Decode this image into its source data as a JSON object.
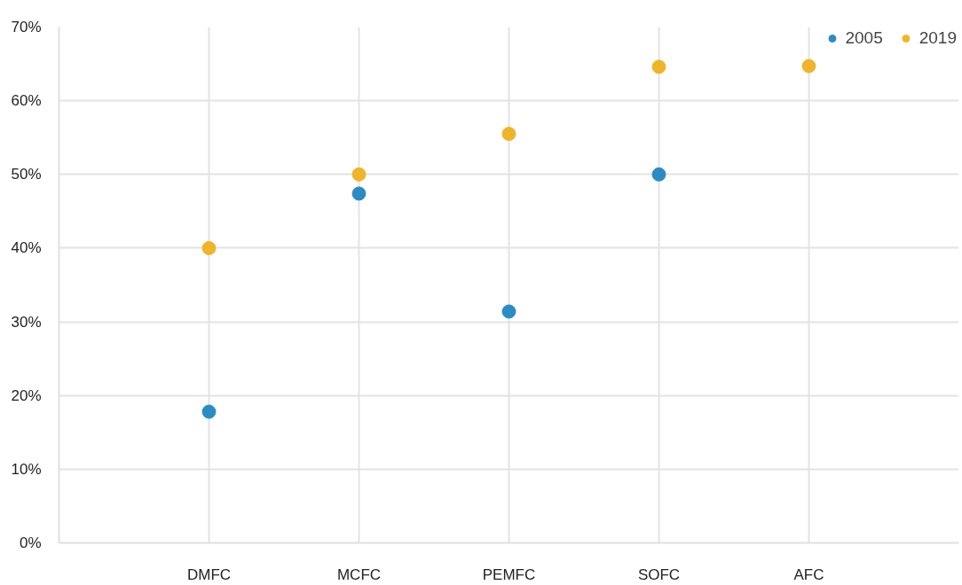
{
  "chart_data": {
    "type": "scatter",
    "categories": [
      "DMFC",
      "MCFC",
      "PEMFC",
      "SOFC",
      "AFC"
    ],
    "series": [
      {
        "name": "2005",
        "color": "#2b8cc4",
        "values": [
          17.8,
          47.4,
          31.4,
          50,
          null
        ]
      },
      {
        "name": "2019",
        "color": "#f0b429",
        "values": [
          40,
          50,
          55.5,
          64.6,
          64.7
        ]
      }
    ],
    "ylim": [
      0,
      70
    ],
    "yticks": [
      {
        "value": 0,
        "label": "0%"
      },
      {
        "value": 10,
        "label": "10%"
      },
      {
        "value": 20,
        "label": "20%"
      },
      {
        "value": 30,
        "label": "30%"
      },
      {
        "value": 40,
        "label": "40%"
      },
      {
        "value": 50,
        "label": "50%"
      },
      {
        "value": 60,
        "label": "60%"
      },
      {
        "value": 70,
        "label": "70%"
      }
    ],
    "grid": true,
    "legend": "top right",
    "marker": "circle"
  }
}
